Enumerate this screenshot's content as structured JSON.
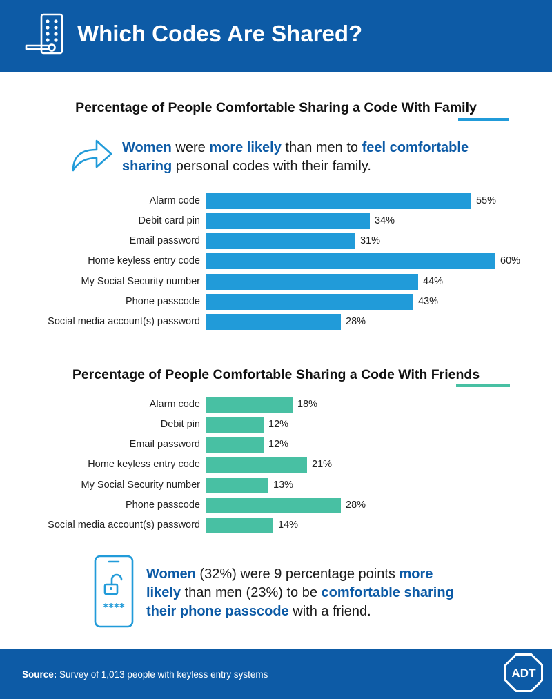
{
  "header": {
    "title": "Which Codes Are Shared?",
    "icon": "keypad-door-lock-icon"
  },
  "sections": [
    {
      "title_prefix": "Percentage of People Comfortable Sharing a Code With",
      "title_emphasis": "Family",
      "accent_color": "#219bd9",
      "callout": {
        "icon": "share-arrow-icon",
        "parts": [
          {
            "text": "Women",
            "hl": true
          },
          {
            "text": " were ",
            "hl": false
          },
          {
            "text": "more likely",
            "hl": true
          },
          {
            "text": " than men to ",
            "hl": false
          },
          {
            "text": "feel comfortable sharing",
            "hl": true
          },
          {
            "text": " personal codes with their family.",
            "hl": false
          }
        ]
      }
    },
    {
      "title_prefix": "Percentage of People Comfortable Sharing a Code With",
      "title_emphasis": "Friends",
      "accent_color": "#48c0a3",
      "callout": {
        "icon": "phone-unlocked-passcode-icon",
        "parts": [
          {
            "text": "Women",
            "hl": true
          },
          {
            "text": " (32%) were 9 percentage points ",
            "hl": false
          },
          {
            "text": "more likely",
            "hl": true
          },
          {
            "text": " than men (23%) to be ",
            "hl": false
          },
          {
            "text": "comfortable sharing their phone passcode",
            "hl": true
          },
          {
            "text": " with a friend.",
            "hl": false
          }
        ]
      }
    }
  ],
  "chart_data": [
    {
      "type": "bar",
      "orientation": "horizontal",
      "title": "Percentage of People Comfortable Sharing a Code With Family",
      "categories": [
        "Alarm code",
        "Debit card pin",
        "Email password",
        "Home keyless entry code",
        "My Social Security number",
        "Phone passcode",
        "Social media account(s) password"
      ],
      "values": [
        55,
        34,
        31,
        60,
        44,
        43,
        28
      ],
      "labels": [
        "55%",
        "34%",
        "31%",
        "60%",
        "44%",
        "43%",
        "28%"
      ],
      "unit": "%",
      "color": "#219bd9",
      "grid": false
    },
    {
      "type": "bar",
      "orientation": "horizontal",
      "title": "Percentage of People Comfortable Sharing a Code With Friends",
      "categories": [
        "Alarm code",
        "Debit pin",
        "Email password",
        "Home keyless entry code",
        "My Social Security number",
        "Phone passcode",
        "Social media account(s) password"
      ],
      "values": [
        18,
        12,
        12,
        21,
        13,
        28,
        14
      ],
      "labels": [
        "18%",
        "12%",
        "12%",
        "21%",
        "13%",
        "28%",
        "14%"
      ],
      "unit": "%",
      "color": "#48c0a3",
      "grid": false
    }
  ],
  "footer": {
    "source_label": "Source:",
    "source_text": " Survey of 1,013 people with keyless entry systems",
    "logo_text": "ADT",
    "logo_icon": "adt-octagon-logo"
  }
}
